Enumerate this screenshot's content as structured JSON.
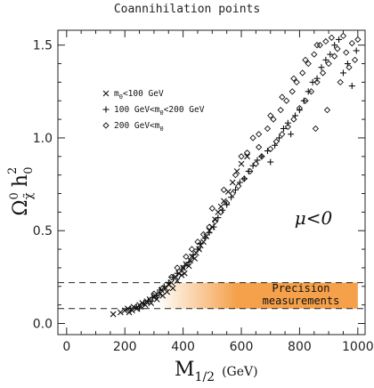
{
  "chart_data": {
    "type": "scatter",
    "title": "Coannihilation points",
    "xlabel_main": "M",
    "xlabel_sub": "1/2",
    "xlabel_unit": "(GeV)",
    "ylabel_main": "Ω",
    "ylabel_sub": "χ̃",
    "ylabel_sup": "0",
    "ylabel_h": "h",
    "ylabel_h_sup": "2",
    "ylabel_h_sub": "0",
    "xlim": [
      -30,
      1025
    ],
    "ylim": [
      -0.06,
      1.58
    ],
    "xticks": [
      0,
      200,
      400,
      600,
      800,
      1000
    ],
    "xtick_labels": [
      "0",
      "200",
      "400",
      "600",
      "800",
      "1000"
    ],
    "yticks": [
      0.0,
      0.5,
      1.0,
      1.5
    ],
    "ytick_labels": [
      "0.0",
      "0.5",
      "1.0",
      "1.5"
    ],
    "grid": false,
    "legend_position": "top-left",
    "legend": [
      {
        "marker": "x",
        "text_parts": [
          "m",
          "0",
          "<100 GeV"
        ]
      },
      {
        "marker": "+",
        "text_parts": [
          "100 GeV<m",
          "0",
          "<200 GeV"
        ]
      },
      {
        "marker": "diamond",
        "text_parts": [
          "200 GeV<m",
          "0",
          ""
        ]
      }
    ],
    "annotation_mu": "μ<0",
    "band": {
      "y_low": 0.08,
      "y_high": 0.22,
      "x_start": 310,
      "x_end": 1000,
      "color": "#f5a04a",
      "text_line1": "Precision",
      "text_line2": "measurements"
    },
    "series": [
      {
        "marker": "x",
        "points": [
          [
            160,
            0.05
          ],
          [
            185,
            0.06
          ],
          [
            200,
            0.07
          ],
          [
            210,
            0.08
          ],
          [
            215,
            0.06
          ],
          [
            225,
            0.07
          ],
          [
            230,
            0.09
          ],
          [
            240,
            0.08
          ],
          [
            250,
            0.1
          ],
          [
            255,
            0.09
          ],
          [
            260,
            0.11
          ],
          [
            270,
            0.1
          ],
          [
            275,
            0.12
          ],
          [
            285,
            0.13
          ],
          [
            290,
            0.11
          ],
          [
            300,
            0.14
          ],
          [
            305,
            0.15
          ],
          [
            310,
            0.13
          ],
          [
            320,
            0.16
          ],
          [
            325,
            0.18
          ],
          [
            330,
            0.15
          ],
          [
            340,
            0.19
          ],
          [
            345,
            0.17
          ],
          [
            350,
            0.21
          ],
          [
            360,
            0.22
          ],
          [
            365,
            0.19
          ],
          [
            375,
            0.25
          ],
          [
            380,
            0.23
          ],
          [
            385,
            0.27
          ],
          [
            395,
            0.26
          ],
          [
            400,
            0.3
          ],
          [
            405,
            0.27
          ],
          [
            410,
            0.32
          ],
          [
            420,
            0.31
          ],
          [
            425,
            0.34
          ],
          [
            430,
            0.36
          ],
          [
            440,
            0.35
          ],
          [
            445,
            0.38
          ],
          [
            455,
            0.4
          ],
          [
            460,
            0.42
          ],
          [
            470,
            0.44
          ],
          [
            480,
            0.47
          ],
          [
            490,
            0.5
          ],
          [
            500,
            0.52
          ],
          [
            510,
            0.56
          ],
          [
            520,
            0.6
          ],
          [
            530,
            0.63
          ],
          [
            540,
            0.66
          ],
          [
            555,
            0.71
          ],
          [
            570,
            0.76
          ],
          [
            585,
            0.82
          ],
          [
            600,
            0.86
          ],
          [
            620,
            0.9
          ]
        ]
      },
      {
        "marker": "+",
        "points": [
          [
            220,
            0.08
          ],
          [
            240,
            0.09
          ],
          [
            250,
            0.08
          ],
          [
            265,
            0.11
          ],
          [
            280,
            0.12
          ],
          [
            295,
            0.14
          ],
          [
            310,
            0.15
          ],
          [
            320,
            0.18
          ],
          [
            335,
            0.2
          ],
          [
            350,
            0.22
          ],
          [
            365,
            0.25
          ],
          [
            380,
            0.27
          ],
          [
            395,
            0.29
          ],
          [
            405,
            0.31
          ],
          [
            420,
            0.33
          ],
          [
            435,
            0.37
          ],
          [
            450,
            0.4
          ],
          [
            460,
            0.43
          ],
          [
            475,
            0.46
          ],
          [
            490,
            0.49
          ],
          [
            505,
            0.52
          ],
          [
            520,
            0.57
          ],
          [
            535,
            0.61
          ],
          [
            550,
            0.64
          ],
          [
            565,
            0.68
          ],
          [
            580,
            0.72
          ],
          [
            595,
            0.76
          ],
          [
            610,
            0.78
          ],
          [
            625,
            0.82
          ],
          [
            640,
            0.85
          ],
          [
            655,
            0.88
          ],
          [
            670,
            0.9
          ],
          [
            690,
            0.93
          ],
          [
            700,
            0.87
          ],
          [
            715,
            0.96
          ],
          [
            730,
            1.0
          ],
          [
            745,
            1.05
          ],
          [
            760,
            1.08
          ],
          [
            770,
            1.02
          ],
          [
            785,
            1.12
          ],
          [
            800,
            1.15
          ],
          [
            815,
            1.2
          ],
          [
            830,
            1.25
          ],
          [
            845,
            1.3
          ],
          [
            860,
            1.32
          ],
          [
            875,
            1.38
          ],
          [
            890,
            1.42
          ],
          [
            905,
            1.45
          ],
          [
            920,
            1.5
          ],
          [
            935,
            1.53
          ],
          [
            950,
            1.35
          ],
          [
            965,
            1.4
          ],
          [
            980,
            1.28
          ],
          [
            995,
            1.47
          ]
        ]
      },
      {
        "marker": "diamond",
        "points": [
          [
            300,
            0.16
          ],
          [
            330,
            0.19
          ],
          [
            360,
            0.25
          ],
          [
            380,
            0.3
          ],
          [
            410,
            0.36
          ],
          [
            430,
            0.4
          ],
          [
            450,
            0.44
          ],
          [
            470,
            0.48
          ],
          [
            490,
            0.52
          ],
          [
            510,
            0.55
          ],
          [
            530,
            0.6
          ],
          [
            550,
            0.65
          ],
          [
            570,
            0.7
          ],
          [
            590,
            0.74
          ],
          [
            600,
            0.9
          ],
          [
            610,
            0.78
          ],
          [
            630,
            0.82
          ],
          [
            640,
            1.0
          ],
          [
            650,
            0.86
          ],
          [
            660,
            0.95
          ],
          [
            670,
            0.9
          ],
          [
            690,
            1.05
          ],
          [
            700,
            0.94
          ],
          [
            710,
            1.1
          ],
          [
            720,
            0.98
          ],
          [
            735,
            1.15
          ],
          [
            740,
            1.02
          ],
          [
            755,
            1.2
          ],
          [
            760,
            1.06
          ],
          [
            775,
            1.25
          ],
          [
            780,
            1.1
          ],
          [
            790,
            1.3
          ],
          [
            800,
            1.16
          ],
          [
            810,
            1.35
          ],
          [
            820,
            1.2
          ],
          [
            830,
            1.4
          ],
          [
            840,
            1.25
          ],
          [
            850,
            1.45
          ],
          [
            855,
            1.05
          ],
          [
            860,
            1.3
          ],
          [
            870,
            1.5
          ],
          [
            880,
            1.35
          ],
          [
            890,
            1.52
          ],
          [
            895,
            1.15
          ],
          [
            900,
            1.4
          ],
          [
            910,
            1.54
          ],
          [
            920,
            1.44
          ],
          [
            930,
            1.48
          ],
          [
            940,
            1.3
          ],
          [
            950,
            1.55
          ],
          [
            960,
            1.46
          ],
          [
            970,
            1.38
          ],
          [
            980,
            1.51
          ],
          [
            990,
            1.42
          ],
          [
            1000,
            1.53
          ],
          [
            500,
            0.62
          ],
          [
            540,
            0.72
          ],
          [
            580,
            0.8
          ],
          [
            620,
            0.92
          ],
          [
            660,
            1.02
          ],
          [
            700,
            1.12
          ],
          [
            740,
            1.22
          ],
          [
            780,
            1.32
          ],
          [
            820,
            1.42
          ],
          [
            860,
            1.5
          ]
        ]
      }
    ]
  }
}
